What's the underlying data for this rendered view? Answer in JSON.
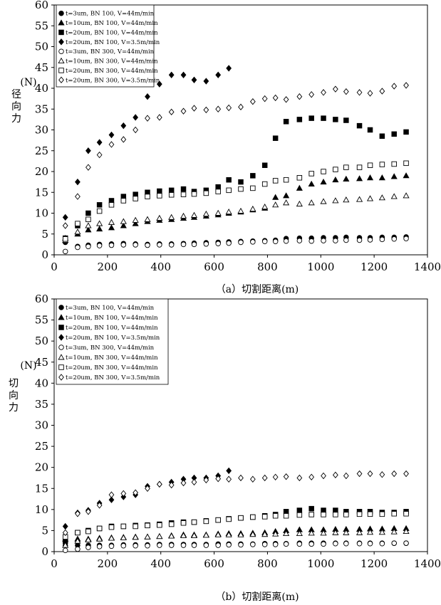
{
  "chart_data": [
    {
      "type": "scatter",
      "title": "",
      "xlabel": "（a）切割距离(m)",
      "ylabel": "(N)",
      "ylabel_cn": "径向力",
      "xlim": [
        0,
        1400
      ],
      "ylim": [
        0,
        60
      ],
      "xticks": [
        "0",
        "200",
        "400",
        "600",
        "800",
        "1000",
        "1200",
        "1400"
      ],
      "yticks": [
        "0",
        "5",
        "10",
        "15",
        "20",
        "25",
        "30",
        "35",
        "40",
        "45",
        "50",
        "55",
        "60"
      ],
      "grid": false,
      "legend_position": "top-left",
      "series": [
        {
          "name": "t=3um,  BN 100, V=44m/min",
          "marker": "filled-circle",
          "x": [
            42,
            88,
            128,
            170,
            215,
            260,
            305,
            350,
            395,
            440,
            485,
            525,
            570,
            615,
            655,
            700,
            745,
            790,
            830,
            870,
            920,
            965,
            1010,
            1055,
            1095,
            1145,
            1185,
            1230,
            1275,
            1320
          ],
          "y": [
            3.0,
            2.0,
            2.3,
            2.5,
            2.6,
            2.7,
            2.6,
            2.5,
            2.6,
            2.6,
            2.7,
            2.8,
            2.9,
            3.0,
            3.1,
            3.2,
            3.3,
            3.4,
            3.5,
            3.9,
            4.0,
            4.0,
            4.1,
            4.1,
            4.2,
            4.1,
            4.1,
            4.2,
            4.2,
            4.3
          ]
        },
        {
          "name": "t=10um, BN 100, V=44m/min",
          "marker": "filled-triangle",
          "x": [
            42,
            88,
            128,
            170,
            215,
            260,
            305,
            350,
            395,
            440,
            485,
            525,
            570,
            615,
            655,
            700,
            745,
            790,
            830,
            870,
            920,
            965,
            1010,
            1055,
            1095,
            1145,
            1185,
            1230,
            1275,
            1320
          ],
          "y": [
            4.0,
            5.0,
            6.0,
            6.2,
            6.5,
            7.0,
            7.5,
            8.0,
            8.3,
            8.5,
            8.8,
            9.0,
            9.3,
            9.6,
            10.0,
            10.3,
            10.8,
            11.2,
            13.8,
            14.2,
            16.0,
            17.0,
            17.5,
            18.0,
            18.2,
            18.3,
            18.5,
            18.5,
            18.8,
            19.0
          ]
        },
        {
          "name": "t=20um, BN 100, V=44m/min",
          "marker": "filled-square",
          "x": [
            42,
            88,
            128,
            170,
            215,
            260,
            305,
            350,
            395,
            440,
            485,
            525,
            570,
            615,
            655,
            700,
            745,
            790,
            830,
            870,
            920,
            965,
            1010,
            1055,
            1095,
            1145,
            1185,
            1230,
            1275,
            1320
          ],
          "y": [
            4.0,
            7.0,
            10.0,
            12.0,
            13.0,
            14.0,
            14.5,
            15.0,
            15.3,
            15.5,
            15.8,
            15.2,
            15.5,
            16.3,
            18.0,
            17.5,
            19.0,
            21.5,
            28.0,
            32.0,
            32.5,
            32.8,
            32.8,
            32.5,
            32.3,
            31.0,
            30.0,
            28.5,
            29.0,
            29.5
          ]
        },
        {
          "name": "t=20um, BN 100, V=3.5m/min",
          "marker": "filled-diamond",
          "x": [
            42,
            88,
            128,
            170,
            215,
            260,
            305,
            350,
            395,
            440,
            485,
            525,
            570,
            615,
            655
          ],
          "y": [
            9.0,
            17.5,
            25.0,
            27.0,
            28.8,
            31.0,
            33.0,
            38.0,
            41.0,
            43.2,
            43.2,
            42.0,
            41.7,
            43.2,
            44.8
          ]
        },
        {
          "name": "t=3um,  BN 300, V=44m/min",
          "marker": "open-circle",
          "x": [
            42,
            88,
            128,
            170,
            215,
            260,
            305,
            350,
            395,
            440,
            485,
            525,
            570,
            615,
            655,
            700,
            745,
            790,
            830,
            870,
            920,
            965,
            1010,
            1055,
            1095,
            1145,
            1185,
            1230,
            1275,
            1320
          ],
          "y": [
            0.8,
            1.8,
            2.0,
            2.2,
            2.3,
            2.4,
            2.4,
            2.3,
            2.4,
            2.4,
            2.5,
            2.5,
            2.6,
            2.7,
            2.8,
            3.0,
            3.1,
            3.2,
            3.2,
            3.3,
            3.4,
            3.3,
            3.4,
            3.4,
            3.5,
            3.5,
            3.6,
            3.7,
            3.8,
            3.9
          ]
        },
        {
          "name": "t=10um, BN 300, V=44m/min",
          "marker": "open-triangle",
          "x": [
            42,
            88,
            128,
            170,
            215,
            260,
            305,
            350,
            395,
            440,
            485,
            525,
            570,
            615,
            655,
            700,
            745,
            790,
            830,
            870,
            920,
            965,
            1010,
            1055,
            1095,
            1145,
            1185,
            1230,
            1275,
            1320
          ],
          "y": [
            3.5,
            5.5,
            7.0,
            7.5,
            7.8,
            8.0,
            8.3,
            8.5,
            8.8,
            9.0,
            9.3,
            9.5,
            9.8,
            10.0,
            10.3,
            10.5,
            11.0,
            11.5,
            12.0,
            12.5,
            12.2,
            12.5,
            12.8,
            13.0,
            13.2,
            13.3,
            13.5,
            13.7,
            14.0,
            14.2
          ]
        },
        {
          "name": "t=20um, BN 300, V=44m/min",
          "marker": "open-square",
          "x": [
            42,
            88,
            128,
            170,
            215,
            260,
            305,
            350,
            395,
            440,
            485,
            525,
            570,
            615,
            655,
            700,
            745,
            790,
            830,
            870,
            920,
            965,
            1010,
            1055,
            1095,
            1145,
            1185,
            1230,
            1275,
            1320
          ],
          "y": [
            3.8,
            7.5,
            8.5,
            10.5,
            12.0,
            13.0,
            13.5,
            14.0,
            14.2,
            14.4,
            14.5,
            14.6,
            14.8,
            15.2,
            15.5,
            15.8,
            16.0,
            17.0,
            17.8,
            18.0,
            18.5,
            19.5,
            20.0,
            20.5,
            21.0,
            21.0,
            21.5,
            21.7,
            21.8,
            22.0
          ]
        },
        {
          "name": "t=20um, BN 300, V=3.5m/min",
          "marker": "open-diamond",
          "x": [
            42,
            88,
            128,
            170,
            215,
            260,
            305,
            350,
            395,
            440,
            485,
            525,
            570,
            615,
            655,
            700,
            745,
            790,
            830,
            870,
            920,
            965,
            1010,
            1055,
            1095,
            1145,
            1185,
            1230,
            1275,
            1320
          ],
          "y": [
            7.0,
            14.0,
            21.0,
            24.0,
            26.5,
            27.7,
            30.0,
            32.8,
            33.0,
            34.3,
            34.5,
            35.2,
            34.8,
            35.0,
            35.3,
            35.5,
            36.8,
            37.5,
            37.7,
            37.3,
            38.0,
            38.5,
            39.0,
            39.8,
            39.2,
            39.0,
            38.8,
            39.3,
            40.5,
            40.7
          ]
        }
      ]
    },
    {
      "type": "scatter",
      "title": "",
      "xlabel": "（b）切割距离(m)",
      "ylabel": "(N)",
      "ylabel_cn": "切向力",
      "xlim": [
        0,
        1400
      ],
      "ylim": [
        0,
        60
      ],
      "xticks": [
        "0",
        "200",
        "400",
        "600",
        "800",
        "1000",
        "1200",
        "1400"
      ],
      "yticks": [
        "0",
        "5",
        "10",
        "15",
        "20",
        "25",
        "30",
        "35",
        "40",
        "45",
        "50",
        "55",
        "60"
      ],
      "grid": false,
      "legend_position": "top-left",
      "series": [
        {
          "name": "t=3um,  BN 100, V=44m/min",
          "marker": "filled-circle",
          "x": [
            42,
            88,
            128,
            170,
            215,
            260,
            305,
            350,
            395,
            440,
            485,
            525,
            570,
            615,
            655,
            700,
            745,
            790,
            830,
            870,
            920,
            965,
            1010,
            1055,
            1095,
            1145,
            1185,
            1230,
            1275,
            1320
          ],
          "y": [
            1.5,
            1.5,
            1.5,
            1.5,
            1.5,
            1.6,
            1.6,
            1.6,
            1.7,
            1.7,
            1.7,
            1.7,
            1.7,
            1.8,
            1.8,
            1.8,
            1.8,
            1.9,
            1.9,
            1.9,
            2.0,
            2.0,
            2.0,
            2.0,
            2.0,
            2.0,
            2.0,
            2.0,
            2.0,
            2.0
          ]
        },
        {
          "name": "t=10um, BN 100, V=44m/min",
          "marker": "filled-triangle",
          "x": [
            42,
            88,
            128,
            170,
            215,
            260,
            305,
            350,
            395,
            440,
            485,
            525,
            570,
            615,
            655,
            700,
            745,
            790,
            830,
            870,
            920,
            965,
            1010,
            1055,
            1095,
            1145,
            1185,
            1230,
            1275,
            1320
          ],
          "y": [
            3.0,
            3.0,
            3.0,
            3.2,
            3.3,
            3.4,
            3.5,
            3.5,
            3.6,
            3.8,
            4.0,
            4.0,
            4.0,
            4.2,
            4.3,
            4.3,
            4.4,
            4.5,
            4.8,
            5.0,
            5.2,
            5.2,
            5.2,
            5.3,
            5.3,
            5.3,
            5.4,
            5.4,
            5.5,
            5.5
          ]
        },
        {
          "name": "t=20um, BN 100, V=44m/min",
          "marker": "filled-square",
          "x": [
            42,
            88,
            128,
            170,
            215,
            260,
            305,
            350,
            395,
            440,
            485,
            525,
            570,
            615,
            655,
            700,
            745,
            790,
            830,
            870,
            920,
            965,
            1010,
            1055,
            1095,
            1145,
            1185,
            1230,
            1275,
            1320
          ],
          "y": [
            2.5,
            4.5,
            5.0,
            5.5,
            6.0,
            6.0,
            6.2,
            6.3,
            6.5,
            6.8,
            7.0,
            7.0,
            7.3,
            7.5,
            7.8,
            8.0,
            8.2,
            8.5,
            8.8,
            9.5,
            9.8,
            10.2,
            9.8,
            9.8,
            9.5,
            9.5,
            9.5,
            9.3,
            9.3,
            9.5
          ]
        },
        {
          "name": "t=20um, BN 100, V=3.5m/min",
          "marker": "filled-diamond",
          "x": [
            42,
            88,
            128,
            170,
            215,
            260,
            305,
            350,
            395,
            440,
            485,
            525,
            570,
            615,
            655
          ],
          "y": [
            6.0,
            9.2,
            9.8,
            11.5,
            12.3,
            13.0,
            13.5,
            15.5,
            16.0,
            16.5,
            17.2,
            17.5,
            17.5,
            18.0,
            19.2
          ]
        },
        {
          "name": "t=3um,  BN 300, V=44m/min",
          "marker": "open-circle",
          "x": [
            42,
            88,
            128,
            170,
            215,
            260,
            305,
            350,
            395,
            440,
            485,
            525,
            570,
            615,
            655,
            700,
            745,
            790,
            830,
            870,
            920,
            965,
            1010,
            1055,
            1095,
            1145,
            1185,
            1230,
            1275,
            1320
          ],
          "y": [
            0.3,
            0.6,
            1.0,
            1.2,
            1.3,
            1.4,
            1.4,
            1.4,
            1.5,
            1.5,
            1.5,
            1.5,
            1.5,
            1.5,
            1.6,
            1.6,
            1.7,
            1.7,
            1.7,
            1.8,
            1.8,
            1.8,
            1.8,
            1.9,
            1.9,
            1.9,
            1.9,
            1.9,
            2.0,
            2.0
          ]
        },
        {
          "name": "t=10um, BN 300, V=44m/min",
          "marker": "open-triangle",
          "x": [
            42,
            88,
            128,
            170,
            215,
            260,
            305,
            350,
            395,
            440,
            485,
            525,
            570,
            615,
            655,
            700,
            745,
            790,
            830,
            870,
            920,
            965,
            1010,
            1055,
            1095,
            1145,
            1185,
            1230,
            1275,
            1320
          ],
          "y": [
            1.5,
            2.5,
            2.8,
            3.0,
            3.2,
            3.3,
            3.4,
            3.5,
            3.6,
            3.7,
            3.8,
            3.8,
            3.9,
            4.0,
            4.0,
            4.0,
            4.1,
            4.1,
            4.2,
            4.3,
            4.3,
            4.4,
            4.4,
            4.5,
            4.5,
            4.5,
            4.6,
            4.6,
            4.7,
            4.8
          ]
        },
        {
          "name": "t=20um, BN 300, V=44m/min",
          "marker": "open-square",
          "x": [
            42,
            88,
            128,
            170,
            215,
            260,
            305,
            350,
            395,
            440,
            485,
            525,
            570,
            615,
            655,
            700,
            745,
            790,
            830,
            870,
            920,
            965,
            1010,
            1055,
            1095,
            1145,
            1185,
            1230,
            1275,
            1320
          ],
          "y": [
            3.5,
            4.5,
            4.8,
            5.5,
            5.8,
            6.0,
            6.0,
            6.2,
            6.3,
            6.5,
            6.8,
            7.0,
            7.2,
            7.5,
            7.7,
            8.0,
            8.2,
            8.3,
            8.5,
            8.5,
            8.7,
            8.8,
            8.8,
            8.8,
            8.8,
            8.9,
            8.9,
            8.9,
            9.0,
            9.0
          ]
        },
        {
          "name": "t=20um, BN 300, V=3.5m/min",
          "marker": "open-diamond",
          "x": [
            42,
            88,
            128,
            170,
            215,
            260,
            305,
            350,
            395,
            440,
            485,
            525,
            570,
            615,
            655,
            700,
            745,
            790,
            830,
            870,
            920,
            965,
            1010,
            1055,
            1095,
            1145,
            1185,
            1230,
            1275,
            1320
          ],
          "y": [
            4.5,
            9.0,
            9.5,
            11.0,
            13.5,
            13.8,
            14.0,
            15.0,
            16.0,
            15.8,
            16.3,
            16.5,
            17.0,
            17.3,
            17.2,
            17.5,
            17.2,
            17.5,
            17.7,
            17.8,
            17.5,
            17.7,
            18.0,
            18.2,
            18.0,
            18.5,
            18.5,
            18.3,
            18.5,
            18.5
          ]
        }
      ]
    }
  ]
}
